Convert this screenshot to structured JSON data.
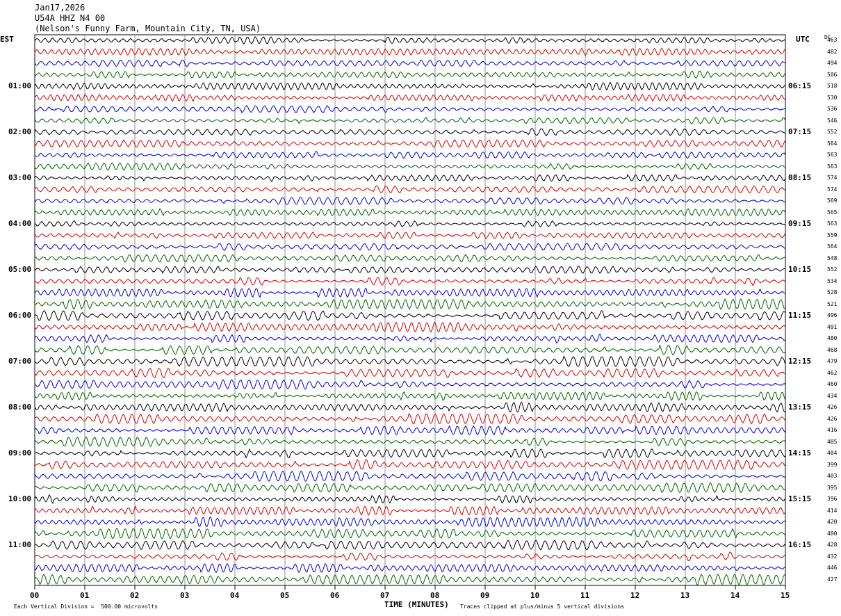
{
  "header": {
    "date": "Jan17,2026",
    "station": "U54A HHZ N4 00",
    "location": "(Nelson's Funny Farm, Mountain City, TN, USA)"
  },
  "axis": {
    "left_tz": "EST",
    "right_tz": "UTC",
    "dc_label": "DC",
    "xlabel": "TIME (MINUTES)",
    "x_ticks": [
      "00",
      "01",
      "02",
      "03",
      "04",
      "05",
      "06",
      "07",
      "08",
      "09",
      "10",
      "11",
      "12",
      "13",
      "14",
      "15"
    ],
    "left_hours": [
      "01:00",
      "02:00",
      "03:00",
      "04:00",
      "05:00",
      "06:00",
      "07:00",
      "08:00",
      "09:00",
      "10:00",
      "11:00"
    ],
    "right_hours": [
      "06:15",
      "07:15",
      "08:15",
      "09:15",
      "10:15",
      "11:15",
      "12:15",
      "13:15",
      "14:15",
      "15:15",
      "16:15"
    ]
  },
  "footer": {
    "scale_note": "Each Vertical Division =  500.00 microvolts",
    "clip_note": "Traces clipped at plus/minus 5 vertical divisions"
  },
  "colors": [
    "#000000",
    "#d40000",
    "#0000cc",
    "#006400"
  ],
  "chart_data": {
    "type": "line",
    "title": "U54A HHZ N4 00",
    "xlabel": "TIME (MINUTES)",
    "xlim": [
      0,
      15
    ],
    "trace_count": 48,
    "minutes_per_trace": 15,
    "dc_offsets": [
      "463",
      "482",
      "494",
      "506",
      "518",
      "530",
      "536",
      "546",
      "552",
      "564",
      "563",
      "563",
      "574",
      "574",
      "569",
      "565",
      "563",
      "559",
      "564",
      "548",
      "552",
      "534",
      "528",
      "521",
      "496",
      "491",
      "480",
      "468",
      "479",
      "462",
      "460",
      "434",
      "426",
      "426",
      "416",
      "405",
      "404",
      "399",
      "403",
      "395",
      "396",
      "414",
      "420",
      "400",
      "428",
      "432",
      "446",
      "427"
    ]
  }
}
